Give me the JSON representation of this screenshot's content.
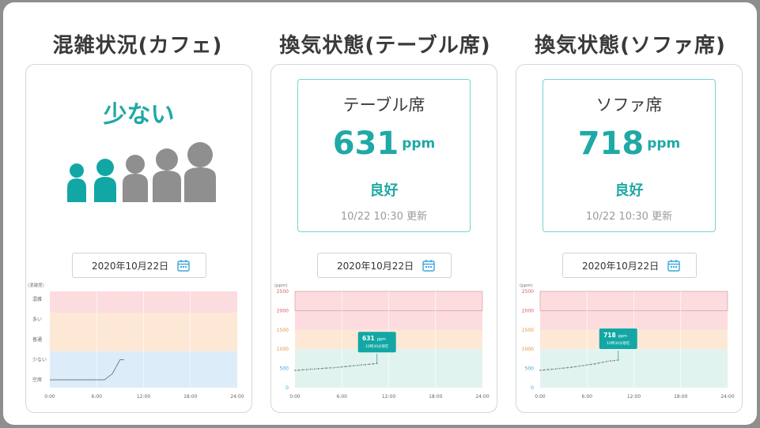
{
  "panels": {
    "crowd": {
      "title": "混雑状況(カフェ)",
      "level_label": "少ない",
      "date": "2020年10月22日",
      "icons": [
        "person-icon",
        "calendar-icon"
      ]
    },
    "table": {
      "title": "換気状態(テーブル席)",
      "seat": "テーブル席",
      "ppm": "631",
      "unit": "ppm",
      "status": "良好",
      "updated": "10/22 10:30 更新",
      "date": "2020年10月22日",
      "tooltip_value": "631",
      "tooltip_unit": "ppm",
      "tooltip_sub": "10時30分現在"
    },
    "sofa": {
      "title": "換気状態(ソファ席)",
      "seat": "ソファ席",
      "ppm": "718",
      "unit": "ppm",
      "status": "良好",
      "updated": "10/22 10:30 更新",
      "date": "2020年10月22日",
      "tooltip_value": "718",
      "tooltip_unit": "ppm",
      "tooltip_sub": "10時30分現在"
    }
  },
  "colors": {
    "accent": "#1fa9a6",
    "person_active": "#12a7a5",
    "person_inactive": "#8f8f8f",
    "band_red": "#fcdcdf",
    "band_orange": "#fce8d5",
    "band_yellow": "#fbf0d5",
    "band_green": "#e1f3ee",
    "band_blue": "#dcecf9"
  },
  "chart_data": [
    {
      "type": "line",
      "ylabel": "(混雑度)",
      "y_categories": [
        "空席",
        "少ない",
        "普通",
        "多い",
        "混雑"
      ],
      "x_ticks": [
        "0:00",
        "6:00",
        "12:00",
        "18:00",
        "24:00"
      ],
      "xlim": [
        0,
        24
      ],
      "x": [
        0,
        1,
        2,
        3,
        4,
        5,
        6,
        7,
        8,
        9,
        9.5
      ],
      "y": [
        0,
        0,
        0,
        0,
        0,
        0,
        0,
        0,
        0.3,
        1,
        1
      ]
    },
    {
      "type": "line",
      "ylabel": "(ppm)",
      "y_ticks": [
        0,
        500,
        1000,
        1500,
        2000,
        2500
      ],
      "ylim": [
        0,
        2500
      ],
      "x_ticks": [
        "0:00",
        "6:00",
        "12:00",
        "18:00",
        "24:00"
      ],
      "xlim": [
        0,
        24
      ],
      "x": [
        0,
        0.5,
        1,
        1.5,
        2,
        2.5,
        3,
        3.5,
        4,
        4.5,
        5,
        5.5,
        6,
        6.5,
        7,
        7.5,
        8,
        8.5,
        9,
        9.5,
        10,
        10.5
      ],
      "y": [
        450,
        455,
        465,
        470,
        480,
        485,
        495,
        500,
        510,
        515,
        520,
        530,
        540,
        550,
        560,
        570,
        580,
        590,
        600,
        610,
        620,
        631
      ]
    },
    {
      "type": "line",
      "ylabel": "(ppm)",
      "y_ticks": [
        0,
        500,
        1000,
        1500,
        2000,
        2500
      ],
      "ylim": [
        0,
        2500
      ],
      "x_ticks": [
        "0:00",
        "6:00",
        "12:00",
        "18:00",
        "24:00"
      ],
      "xlim": [
        0,
        24
      ],
      "x": [
        0,
        0.5,
        1,
        1.5,
        2,
        2.5,
        3,
        3.5,
        4,
        4.5,
        5,
        5.5,
        6,
        6.5,
        7,
        7.5,
        8,
        8.5,
        9,
        9.5,
        10
      ],
      "y": [
        450,
        460,
        470,
        480,
        490,
        500,
        510,
        520,
        530,
        545,
        560,
        575,
        590,
        605,
        620,
        640,
        660,
        680,
        695,
        705,
        718
      ]
    }
  ]
}
